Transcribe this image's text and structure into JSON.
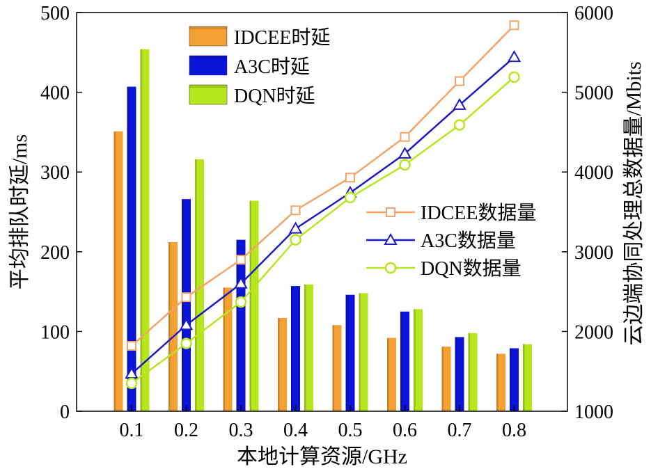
{
  "chart_data": {
    "type": "bar",
    "xlabel": "本地计算资源/GHz",
    "ylabel_left": "平均排队时延/ms",
    "ylabel_right": "云边端协同处理总数据量/Mbits",
    "categories": [
      "0.1",
      "0.2",
      "0.3",
      "0.4",
      "0.5",
      "0.6",
      "0.7",
      "0.8"
    ],
    "ylim_left": [
      0,
      500
    ],
    "yticks_left": [
      "0",
      "100",
      "200",
      "300",
      "400",
      "500"
    ],
    "ylim_right": [
      1000,
      6000
    ],
    "yticks_right": [
      "1000",
      "2000",
      "3000",
      "4000",
      "5000",
      "6000"
    ],
    "grid": false,
    "bar_series": [
      {
        "name": "IDCEE时延",
        "color": "#F5A033",
        "values": [
          351,
          212,
          155,
          117,
          108,
          92,
          81,
          72
        ]
      },
      {
        "name": "A3C时延",
        "color": "#0A14D6",
        "values": [
          407,
          266,
          215,
          157,
          146,
          125,
          93,
          79
        ]
      },
      {
        "name": "DQN时延",
        "color": "#B8E61E",
        "values": [
          454,
          316,
          264,
          159,
          148,
          128,
          98,
          84
        ]
      }
    ],
    "line_series": [
      {
        "name": "IDCEE数据量",
        "color": "#F5A366",
        "marker": "square",
        "values": [
          1820,
          2430,
          2900,
          3520,
          3930,
          4440,
          5140,
          5840
        ]
      },
      {
        "name": "A3C数据量",
        "color": "#1A1AC8",
        "marker": "triangle",
        "values": [
          1470,
          2080,
          2600,
          3290,
          3740,
          4230,
          4840,
          5440
        ]
      },
      {
        "name": "DQN数据量",
        "color": "#B8E61E",
        "marker": "circle",
        "values": [
          1350,
          1850,
          2370,
          3150,
          3680,
          4090,
          4590,
          5190
        ]
      }
    ],
    "legend_bars_position": "top-left",
    "legend_lines_position": "middle-right"
  }
}
